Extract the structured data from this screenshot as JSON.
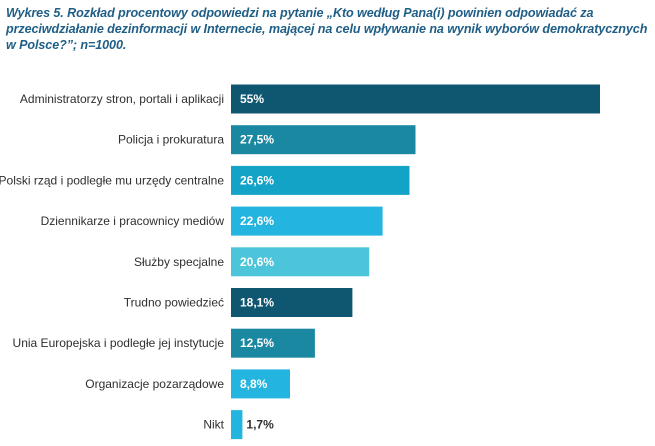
{
  "chart_data": {
    "type": "bar",
    "orientation": "horizontal",
    "title": "Wykres 5. Rozkład procentowy odpowiedzi na pytanie „Kto według Pana(i) powinien odpowiadać za przeciwdziałanie dezinformacji w Internecie, mającej na celu wpływanie na wynik wyborów demokratycznych w Polsce?”; n=1000.",
    "categories": [
      "Administratorzy stron, portali i aplikacji",
      "Policja i prokuratura",
      "Polski rząd i podległe mu urzędy centralne",
      "Dziennikarze i pracownicy mediów",
      "Służby specjalne",
      "Trudno powiedzieć",
      "Unia Europejska i podległe jej instytucje",
      "Organizacje pozarządowe",
      "Nikt"
    ],
    "values": [
      55,
      27.5,
      26.6,
      22.6,
      20.6,
      18.1,
      12.5,
      8.8,
      1.7
    ],
    "value_labels": [
      "55%",
      "27,5%",
      "26,6%",
      "22,6%",
      "20,6%",
      "18,1%",
      "12,5%",
      "8,8%",
      "1,7%"
    ],
    "colors": [
      "#0f5771",
      "#1b88a2",
      "#13a3c7",
      "#23b5e0",
      "#4cc4d9",
      "#0f5771",
      "#1b88a2",
      "#23b5e0",
      "#23b5e0"
    ],
    "xlabel": "",
    "ylabel": "",
    "xlim": [
      0,
      55
    ],
    "grid": false,
    "legend": "none"
  }
}
